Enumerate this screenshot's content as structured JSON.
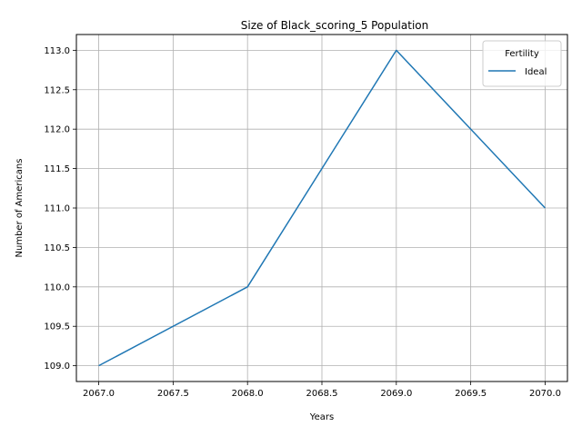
{
  "chart_data": {
    "type": "line",
    "title": "Size of Black_scoring_5 Population",
    "xlabel": "Years",
    "ylabel": "Number of Americans",
    "x": [
      2067,
      2068,
      2069,
      2070
    ],
    "series": [
      {
        "name": "Ideal",
        "values": [
          109,
          110,
          113,
          111
        ],
        "color": "#1f77b4"
      }
    ],
    "xlim": [
      2066.85,
      2070.15
    ],
    "ylim": [
      108.8,
      113.2
    ],
    "xticks": [
      2067.0,
      2067.5,
      2068.0,
      2068.5,
      2069.0,
      2069.5,
      2070.0
    ],
    "xtick_labels": [
      "2067.0",
      "2067.5",
      "2068.0",
      "2068.5",
      "2069.0",
      "2069.5",
      "2070.0"
    ],
    "yticks": [
      109.0,
      109.5,
      110.0,
      110.5,
      111.0,
      111.5,
      112.0,
      112.5,
      113.0
    ],
    "ytick_labels": [
      "109.0",
      "109.5",
      "110.0",
      "110.5",
      "111.0",
      "111.5",
      "112.0",
      "112.5",
      "113.0"
    ],
    "grid": true,
    "legend": {
      "title": "Fertility",
      "placement": "top-right"
    }
  }
}
